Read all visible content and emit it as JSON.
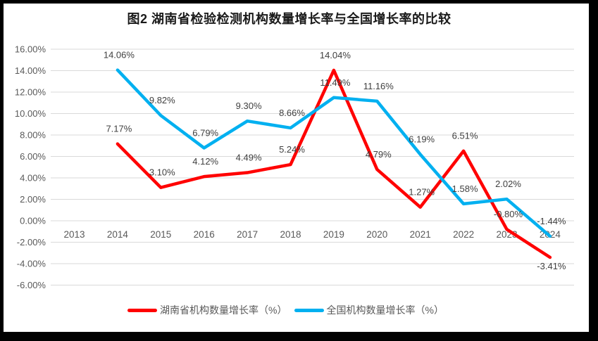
{
  "frame": {
    "background": "#000000",
    "inner_background": "#ffffff"
  },
  "chart_data": {
    "type": "line",
    "title": "图2 湖南省检验检测机构数量增长率与全国增长率的比较",
    "x_categories": [
      "2013",
      "2014",
      "2015",
      "2016",
      "2017",
      "2018",
      "2019",
      "2020",
      "2021",
      "2022",
      "2023",
      "2024"
    ],
    "y_ticks": [
      "16.00%",
      "14.00%",
      "12.00%",
      "10.00%",
      "8.00%",
      "6.00%",
      "4.00%",
      "2.00%",
      "0.00%",
      "-2.00%",
      "-4.00%",
      "-6.00%"
    ],
    "ylim": [
      -6,
      16
    ],
    "y_step": 2,
    "grid": true,
    "legend_position": "bottom",
    "series": [
      {
        "name": "湖南省机构数量增长率（%）",
        "color": "#FF0000",
        "values": [
          null,
          7.17,
          3.1,
          4.12,
          4.49,
          5.24,
          14.04,
          4.79,
          1.27,
          6.51,
          -0.8,
          -3.41
        ],
        "labels": [
          null,
          "7.17%",
          "3.10%",
          "4.12%",
          "4.49%",
          "5.24%",
          "14.04%",
          "4.79%",
          "1.27%",
          "6.51%",
          "-0.80%",
          "-3.41%"
        ]
      },
      {
        "name": "全国机构数量增长率（%）",
        "color": "#00B0F0",
        "values": [
          null,
          14.06,
          9.82,
          6.79,
          9.3,
          8.66,
          11.49,
          11.16,
          6.19,
          1.58,
          2.02,
          -1.44
        ],
        "labels": [
          null,
          "14.06%",
          "9.82%",
          "6.79%",
          "9.30%",
          "8.66%",
          "11.49%",
          "11.16%",
          "6.19%",
          "1.58%",
          "2.02%",
          "-1.44%"
        ]
      }
    ],
    "colors": {
      "axis_text": "#595959",
      "data_label": "#404040",
      "gridline": "#D9D9D9",
      "title": "#1a1a1a"
    }
  }
}
